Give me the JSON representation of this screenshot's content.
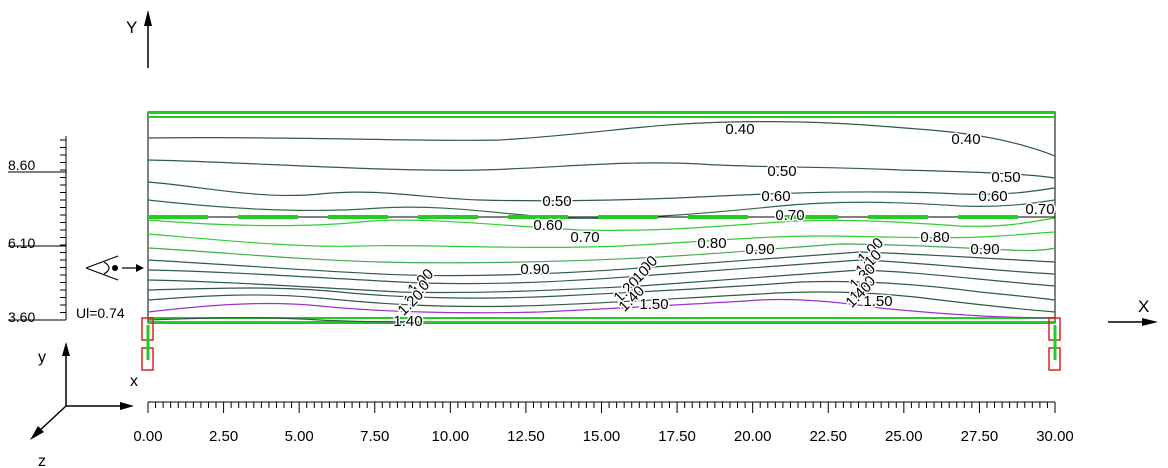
{
  "axes": {
    "y_title": "Y",
    "x_title": "X",
    "corner_y": "y",
    "corner_x": "x",
    "corner_z": "z"
  },
  "x_ruler": {
    "labels": [
      "0.00",
      "2.50",
      "5.00",
      "7.50",
      "10.00",
      "12.50",
      "15.00",
      "17.50",
      "20.00",
      "22.50",
      "25.00",
      "27.50",
      "30.00"
    ]
  },
  "y_ruler": {
    "labels": [
      "8.60",
      "6.10",
      "3.60"
    ]
  },
  "ui_label": "Ul=0.74",
  "contour_labels": [
    {
      "text": "0.40"
    },
    {
      "text": "0.40"
    },
    {
      "text": "0.50"
    },
    {
      "text": "0.50"
    },
    {
      "text": "0.50"
    },
    {
      "text": "0.60"
    },
    {
      "text": "0.60"
    },
    {
      "text": "0.60"
    },
    {
      "text": "0.70"
    },
    {
      "text": "0.70"
    },
    {
      "text": "0.70"
    },
    {
      "text": "0.80"
    },
    {
      "text": "0.80"
    },
    {
      "text": "0.90"
    },
    {
      "text": "0.90"
    },
    {
      "text": "0.90"
    },
    {
      "text": "1.00"
    },
    {
      "text": "1.00"
    },
    {
      "text": "1.00"
    },
    {
      "text": "1.10"
    },
    {
      "text": "1.10"
    },
    {
      "text": "1.10"
    },
    {
      "text": "1.20"
    },
    {
      "text": "1.20"
    },
    {
      "text": "1.30"
    },
    {
      "text": "1.30"
    },
    {
      "text": "1.40"
    },
    {
      "text": "1.40"
    },
    {
      "text": "1.40"
    },
    {
      "text": "1.50"
    },
    {
      "text": "1.50"
    }
  ],
  "colors": {
    "wall": "#22cc22",
    "dark_green": "#2f5a44",
    "light_green": "#33cc33",
    "purple": "#9933cc",
    "support": "#dd2222"
  }
}
